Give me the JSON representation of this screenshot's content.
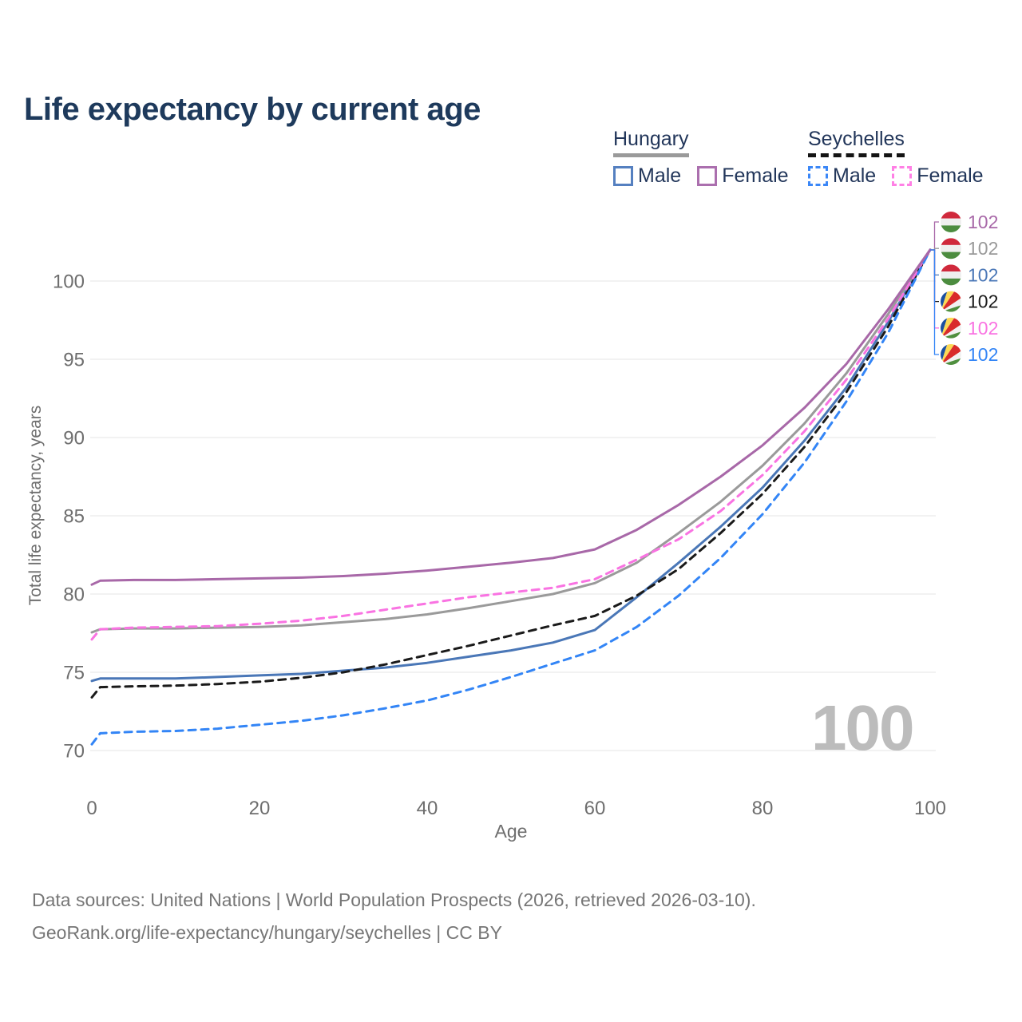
{
  "title": "Life expectancy by current age",
  "watermark": "100",
  "legend": {
    "groups": [
      {
        "label": "Hungary",
        "line_style": "solid",
        "line_color": "#9a9a9a",
        "items": [
          {
            "label": "Male",
            "color": "#5580c0",
            "style": "solid"
          },
          {
            "label": "Female",
            "color": "#ab6fae",
            "style": "solid"
          }
        ]
      },
      {
        "label": "Seychelles",
        "line_style": "dashed",
        "line_color": "#141414",
        "items": [
          {
            "label": "Male",
            "color": "#3b87f7",
            "style": "dashed"
          },
          {
            "label": "Female",
            "color": "#ff80e5",
            "style": "dashed"
          }
        ]
      }
    ]
  },
  "footer": {
    "line1": "Data sources: United Nations | World Population Prospects (2026, retrieved 2026-03-10).",
    "line2": "GeoRank.org/life-expectancy/hungary/seychelles | CC BY"
  },
  "chart_data": {
    "type": "line",
    "title": "Life expectancy by current age",
    "xlabel": "Age",
    "ylabel": "Total life expectancy, years",
    "xlim": [
      0,
      100
    ],
    "ylim": [
      69.5,
      103
    ],
    "xticks": [
      0,
      20,
      40,
      60,
      80,
      100
    ],
    "yticks": [
      70,
      75,
      80,
      85,
      90,
      95,
      100
    ],
    "grid": "horizontal",
    "legend_position": "top-right",
    "x": [
      0,
      1,
      5,
      10,
      15,
      20,
      25,
      30,
      35,
      40,
      45,
      50,
      55,
      60,
      65,
      70,
      75,
      80,
      85,
      90,
      95,
      100
    ],
    "series": [
      {
        "name": "Hungary Female",
        "country": "Hungary",
        "sex": "Female",
        "color": "#a868a8",
        "dash": "solid",
        "flag": "hungary-flag-icon",
        "end_label": "102",
        "values": [
          80.6,
          80.85,
          80.9,
          80.9,
          80.95,
          81.0,
          81.05,
          81.15,
          81.3,
          81.5,
          81.75,
          82.0,
          82.3,
          82.85,
          84.1,
          85.7,
          87.5,
          89.5,
          91.9,
          94.7,
          98.2,
          102
        ]
      },
      {
        "name": "Hungary",
        "country": "Hungary",
        "sex": "All",
        "color": "#9a9a9a",
        "dash": "solid",
        "flag": "hungary-flag-icon",
        "end_label": "102",
        "values": [
          77.55,
          77.75,
          77.8,
          77.8,
          77.85,
          77.9,
          78.0,
          78.2,
          78.4,
          78.7,
          79.1,
          79.55,
          80.0,
          80.7,
          82.0,
          83.9,
          85.9,
          88.2,
          90.9,
          94.1,
          97.9,
          102
        ]
      },
      {
        "name": "Hungary Male",
        "country": "Hungary",
        "sex": "Male",
        "color": "#4a77b7",
        "dash": "solid",
        "flag": "hungary-flag-icon",
        "end_label": "102",
        "values": [
          74.45,
          74.6,
          74.6,
          74.6,
          74.7,
          74.8,
          74.9,
          75.1,
          75.3,
          75.6,
          76.0,
          76.4,
          76.9,
          77.7,
          79.8,
          82.0,
          84.3,
          86.8,
          89.8,
          93.2,
          97.4,
          102
        ]
      },
      {
        "name": "Seychelles",
        "country": "Seychelles",
        "sex": "All",
        "color": "#1a1a1a",
        "dash": "dashed",
        "flag": "seychelles-flag-icon",
        "end_label": "102",
        "values": [
          73.4,
          74.05,
          74.1,
          74.15,
          74.25,
          74.4,
          74.65,
          75.0,
          75.5,
          76.1,
          76.7,
          77.35,
          78.0,
          78.6,
          79.9,
          81.6,
          83.9,
          86.4,
          89.4,
          92.9,
          97.1,
          102
        ]
      },
      {
        "name": "Seychelles Female",
        "country": "Seychelles",
        "sex": "Female",
        "color": "#f973e2",
        "dash": "dashed",
        "flag": "seychelles-flag-icon",
        "end_label": "102",
        "values": [
          77.1,
          77.75,
          77.85,
          77.9,
          77.95,
          78.1,
          78.3,
          78.6,
          79.0,
          79.4,
          79.8,
          80.1,
          80.4,
          80.95,
          82.2,
          83.5,
          85.3,
          87.6,
          90.4,
          93.7,
          97.6,
          102
        ]
      },
      {
        "name": "Seychelles Male",
        "country": "Seychelles",
        "sex": "Male",
        "color": "#3385f6",
        "dash": "dashed",
        "flag": "seychelles-flag-icon",
        "end_label": "102",
        "values": [
          70.4,
          71.1,
          71.2,
          71.25,
          71.4,
          71.65,
          71.9,
          72.25,
          72.7,
          73.2,
          73.9,
          74.7,
          75.55,
          76.4,
          77.9,
          79.9,
          82.3,
          85.1,
          88.4,
          92.3,
          96.7,
          102
        ]
      }
    ]
  }
}
